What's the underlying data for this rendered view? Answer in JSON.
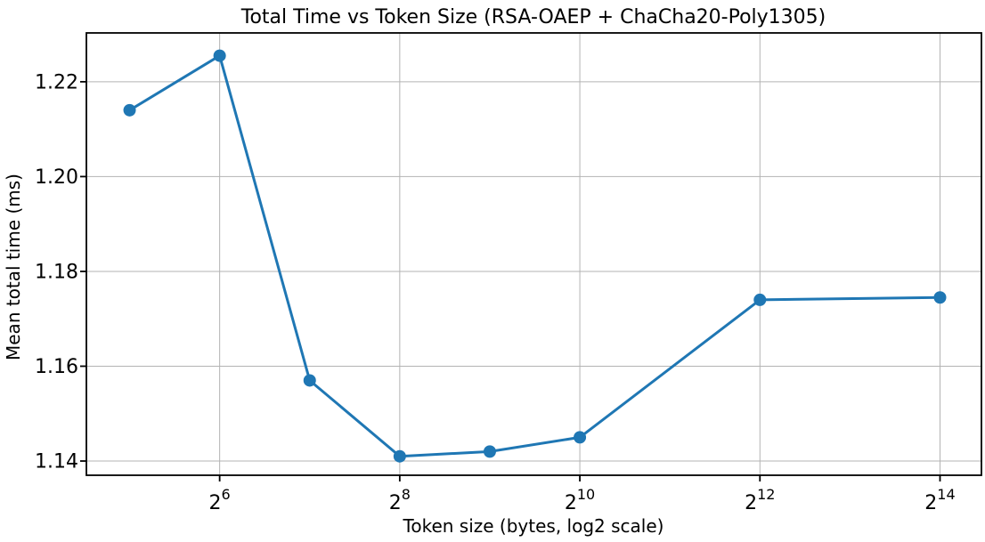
{
  "chart_data": {
    "type": "line",
    "title": "Total Time vs Token Size (RSA-OAEP + ChaCha20-Poly1305)",
    "xlabel": "Token size (bytes, log2 scale)",
    "ylabel": "Mean total time (ms)",
    "series": [
      {
        "name": "Mean total time",
        "x_log2": [
          5,
          6,
          7,
          8,
          9,
          10,
          12,
          14
        ],
        "x_bytes": [
          32,
          64,
          128,
          256,
          512,
          1024,
          4096,
          16384
        ],
        "values": [
          1.214,
          1.2255,
          1.157,
          1.141,
          1.142,
          1.145,
          1.174,
          1.1745
        ]
      }
    ],
    "x_scale": "log2",
    "x_tick_base": "2",
    "x_tick_exponents": [
      "6",
      "8",
      "10",
      "12",
      "14"
    ],
    "y_tick_labels": [
      "1.14",
      "1.16",
      "1.18",
      "1.20",
      "1.22"
    ],
    "y_ticks": [
      1.14,
      1.16,
      1.18,
      1.2,
      1.22
    ],
    "xlim_log2": [
      4.52,
      14.46
    ],
    "ylim": [
      1.137,
      1.2303
    ],
    "grid": true,
    "legend": "none",
    "colors": {
      "line": "#1f77b4",
      "marker": "#1f77b4",
      "grid": "#b3b3b3",
      "spine": "#000000",
      "background": "#ffffff"
    }
  }
}
